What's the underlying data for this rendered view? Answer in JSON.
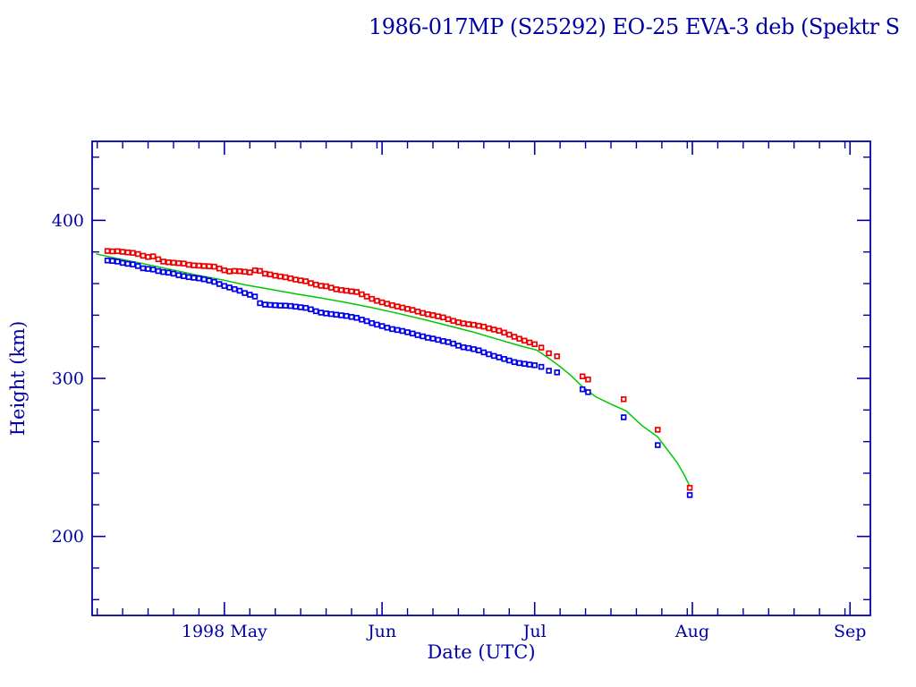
{
  "chart_data": {
    "type": "scatter",
    "title": "1986-017MP (S25292) EO-25 EVA-3 deb (Spektr S",
    "xlabel": "Date (UTC)",
    "ylabel": "Height (km)",
    "x_unit": "days since 1998-04-05 00:00 UTC",
    "xlim_days": [
      0,
      153
    ],
    "ylim": [
      150,
      450
    ],
    "grid": false,
    "legend": "none",
    "axis_color": "#0000a2",
    "x_major_ticks": [
      {
        "day": 26,
        "label": "1998 May"
      },
      {
        "day": 57,
        "label": "Jun"
      },
      {
        "day": 87,
        "label": "Jul"
      },
      {
        "day": 118,
        "label": "Aug"
      },
      {
        "day": 149,
        "label": "Sep"
      }
    ],
    "x_minor_tick_days": [
      1,
      6,
      11,
      16,
      21,
      31,
      36,
      41,
      46,
      51,
      56,
      62,
      67,
      72,
      77,
      82,
      92,
      97,
      102,
      107,
      112,
      117,
      123,
      128,
      133,
      138,
      143,
      148
    ],
    "y_major_ticks": [
      200,
      300,
      400
    ],
    "y_minor_ticks": [
      160,
      180,
      220,
      240,
      260,
      280,
      320,
      340,
      360,
      380,
      420,
      440
    ],
    "series": [
      {
        "name": "apogee-height",
        "marker": "open-square",
        "color": "#ee0000",
        "points": [
          [
            3,
            380.6
          ],
          [
            4,
            380.4
          ],
          [
            5,
            380.5
          ],
          [
            6,
            380.1
          ],
          [
            7,
            379.7
          ],
          [
            8,
            379.4
          ],
          [
            9,
            378.7
          ],
          [
            10,
            377.6
          ],
          [
            11,
            376.8
          ],
          [
            12,
            377.2
          ],
          [
            13,
            375.4
          ],
          [
            14,
            373.9
          ],
          [
            15,
            373.5
          ],
          [
            16,
            373.2
          ],
          [
            17,
            372.9
          ],
          [
            18,
            372.7
          ],
          [
            19,
            371.9
          ],
          [
            20,
            371.5
          ],
          [
            21,
            371.3
          ],
          [
            22,
            371.1
          ],
          [
            23,
            370.9
          ],
          [
            24,
            370.7
          ],
          [
            25,
            369.5
          ],
          [
            26,
            368.4
          ],
          [
            27,
            367.7
          ],
          [
            28,
            368.0
          ],
          [
            29,
            367.8
          ],
          [
            30,
            367.5
          ],
          [
            31,
            367.1
          ],
          [
            32,
            368.4
          ],
          [
            33,
            368.0
          ],
          [
            34,
            366.3
          ],
          [
            35,
            365.8
          ],
          [
            36,
            365.0
          ],
          [
            37,
            364.5
          ],
          [
            38,
            364.0
          ],
          [
            39,
            363.3
          ],
          [
            40,
            362.5
          ],
          [
            41,
            362.0
          ],
          [
            42,
            361.5
          ],
          [
            43,
            360.3
          ],
          [
            44,
            359.3
          ],
          [
            45,
            358.6
          ],
          [
            46,
            358.3
          ],
          [
            47,
            357.4
          ],
          [
            48,
            356.4
          ],
          [
            49,
            355.9
          ],
          [
            50,
            355.5
          ],
          [
            51,
            355.1
          ],
          [
            52,
            354.7
          ],
          [
            53,
            353.2
          ],
          [
            54,
            351.8
          ],
          [
            55,
            350.3
          ],
          [
            56,
            349.1
          ],
          [
            57,
            348.1
          ],
          [
            58,
            347.2
          ],
          [
            59,
            346.3
          ],
          [
            60,
            345.5
          ],
          [
            61,
            344.8
          ],
          [
            62,
            344.0
          ],
          [
            63,
            343.3
          ],
          [
            64,
            342.3
          ],
          [
            65,
            341.4
          ],
          [
            66,
            340.6
          ],
          [
            67,
            340.0
          ],
          [
            68,
            339.3
          ],
          [
            69,
            338.6
          ],
          [
            70,
            337.5
          ],
          [
            71,
            336.4
          ],
          [
            72,
            335.5
          ],
          [
            73,
            334.8
          ],
          [
            74,
            334.3
          ],
          [
            75,
            333.9
          ],
          [
            76,
            333.3
          ],
          [
            77,
            332.7
          ],
          [
            78,
            331.7
          ],
          [
            79,
            330.9
          ],
          [
            80,
            330.1
          ],
          [
            81,
            329.0
          ],
          [
            82,
            327.7
          ],
          [
            83,
            326.3
          ],
          [
            84,
            325.1
          ],
          [
            85,
            323.9
          ],
          [
            86,
            322.7
          ],
          [
            87,
            321.6
          ],
          [
            88.3,
            319.5
          ],
          [
            89.8,
            315.9
          ],
          [
            91.4,
            314.0
          ],
          [
            96.4,
            301.3
          ],
          [
            97.5,
            299.3
          ],
          [
            104.5,
            286.8
          ],
          [
            111.2,
            267.5
          ],
          [
            117.5,
            230.8
          ]
        ]
      },
      {
        "name": "perigee-height",
        "marker": "open-square",
        "color": "#0000ee",
        "points": [
          [
            3,
            374.6
          ],
          [
            4,
            374.3
          ],
          [
            5,
            373.9
          ],
          [
            6,
            373.1
          ],
          [
            7,
            372.5
          ],
          [
            8,
            372.1
          ],
          [
            9,
            371.1
          ],
          [
            10,
            369.7
          ],
          [
            11,
            369.3
          ],
          [
            12,
            368.9
          ],
          [
            13,
            367.9
          ],
          [
            14,
            367.3
          ],
          [
            15,
            366.9
          ],
          [
            16,
            366.3
          ],
          [
            17,
            365.3
          ],
          [
            18,
            364.7
          ],
          [
            19,
            364.1
          ],
          [
            20,
            363.7
          ],
          [
            21,
            363.3
          ],
          [
            22,
            362.7
          ],
          [
            23,
            361.9
          ],
          [
            24,
            361.1
          ],
          [
            25,
            359.7
          ],
          [
            26,
            358.5
          ],
          [
            27,
            357.5
          ],
          [
            28,
            356.5
          ],
          [
            29,
            355.5
          ],
          [
            30,
            354.0
          ],
          [
            31,
            352.9
          ],
          [
            32,
            351.8
          ],
          [
            33,
            347.6
          ],
          [
            34,
            346.7
          ],
          [
            35,
            346.5
          ],
          [
            36,
            346.3
          ],
          [
            37,
            346.1
          ],
          [
            38,
            346.0
          ],
          [
            39,
            345.8
          ],
          [
            40,
            345.4
          ],
          [
            41,
            345.0
          ],
          [
            42,
            344.6
          ],
          [
            43,
            343.7
          ],
          [
            44,
            342.5
          ],
          [
            45,
            341.6
          ],
          [
            46,
            341.1
          ],
          [
            47,
            340.7
          ],
          [
            48,
            340.3
          ],
          [
            49,
            339.9
          ],
          [
            50,
            339.5
          ],
          [
            51,
            338.9
          ],
          [
            52,
            338.3
          ],
          [
            53,
            337.2
          ],
          [
            54,
            336.2
          ],
          [
            55,
            335.0
          ],
          [
            56,
            334.0
          ],
          [
            57,
            333.1
          ],
          [
            58,
            332.1
          ],
          [
            59,
            331.2
          ],
          [
            60,
            330.6
          ],
          [
            61,
            330.0
          ],
          [
            62,
            329.2
          ],
          [
            63,
            328.4
          ],
          [
            64,
            327.4
          ],
          [
            65,
            326.6
          ],
          [
            66,
            325.7
          ],
          [
            67,
            325.2
          ],
          [
            68,
            324.4
          ],
          [
            69,
            323.6
          ],
          [
            70,
            323.0
          ],
          [
            71,
            322.0
          ],
          [
            72,
            320.7
          ],
          [
            73,
            319.7
          ],
          [
            74,
            319.2
          ],
          [
            75,
            318.5
          ],
          [
            76,
            317.7
          ],
          [
            77,
            316.5
          ],
          [
            78,
            315.3
          ],
          [
            79,
            314.2
          ],
          [
            80,
            313.3
          ],
          [
            81,
            312.3
          ],
          [
            82,
            311.3
          ],
          [
            83,
            310.3
          ],
          [
            84,
            309.7
          ],
          [
            85,
            309.2
          ],
          [
            86,
            308.7
          ],
          [
            87,
            308.3
          ],
          [
            88.3,
            307.3
          ],
          [
            89.8,
            304.8
          ],
          [
            91.4,
            303.8
          ],
          [
            96.4,
            293.1
          ],
          [
            97.5,
            291.3
          ],
          [
            104.5,
            275.4
          ],
          [
            111.2,
            257.8
          ],
          [
            117.5,
            226.2
          ]
        ]
      },
      {
        "name": "mean-height-fit",
        "marker": "line",
        "color": "#00c800",
        "points": [
          [
            0.8,
            378.8
          ],
          [
            5,
            375.8
          ],
          [
            10,
            372.6
          ],
          [
            15,
            369.2
          ],
          [
            20,
            365.8
          ],
          [
            26,
            362.1
          ],
          [
            30,
            359.2
          ],
          [
            35,
            356.4
          ],
          [
            40,
            353.5
          ],
          [
            45,
            350.9
          ],
          [
            50,
            348.0
          ],
          [
            55,
            344.8
          ],
          [
            60,
            341.2
          ],
          [
            65,
            337.4
          ],
          [
            70,
            333.4
          ],
          [
            75,
            329.2
          ],
          [
            80,
            324.5
          ],
          [
            84,
            320.7
          ],
          [
            87.4,
            317.9
          ],
          [
            90,
            312.2
          ],
          [
            92,
            307.5
          ],
          [
            94,
            302.2
          ],
          [
            96.2,
            295.3
          ],
          [
            99,
            288.4
          ],
          [
            102,
            283.7
          ],
          [
            105,
            279.4
          ],
          [
            108,
            270.4
          ],
          [
            111.2,
            263.0
          ],
          [
            113,
            255.3
          ],
          [
            115,
            246.8
          ],
          [
            116.5,
            238.3
          ],
          [
            117.6,
            231.0
          ]
        ]
      }
    ]
  }
}
